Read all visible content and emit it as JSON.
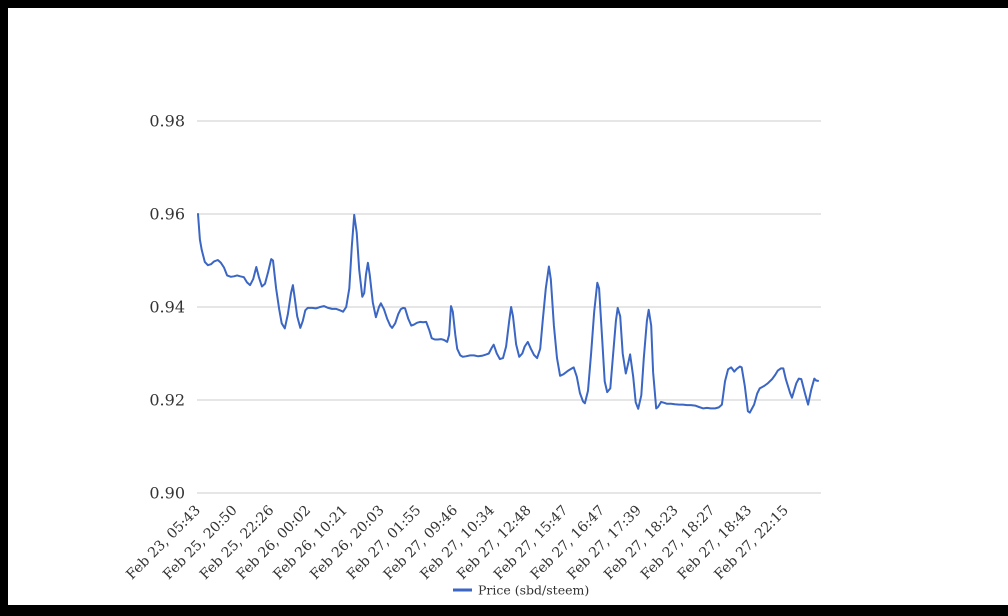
{
  "canvas": {
    "frame_color": "#000000",
    "page_color": "#ffffff"
  },
  "chart_data": {
    "type": "line",
    "title": "",
    "xlabel": "",
    "ylabel": "",
    "grid": true,
    "legend_position": "bottom",
    "colors": {
      "line": "#3b66c4",
      "grid": "#cccccc",
      "axis_text": "#333333"
    },
    "y_axis": {
      "min": 0.9,
      "max": 0.98,
      "tick_labels": [
        "0.90",
        "0.92",
        "0.94",
        "0.96",
        "0.98"
      ],
      "tick_values": [
        0.9,
        0.92,
        0.94,
        0.96,
        0.98
      ]
    },
    "x_axis": {
      "tick_labels": [
        "Feb 23, 05:43",
        "Feb 25, 20:50",
        "Feb 25, 22:26",
        "Feb 26, 00:02",
        "Feb 26, 10:21",
        "Feb 26, 20:03",
        "Feb 27, 01:55",
        "Feb 27, 09:46",
        "Feb 27, 10:34",
        "Feb 27, 12:48",
        "Feb 27, 15:47",
        "Feb 27, 16:47",
        "Feb 27, 17:39",
        "Feb 27, 18:23",
        "Feb 27, 18:27",
        "Feb 27, 18:43",
        "Feb 27, 22:15"
      ]
    },
    "series": [
      {
        "name": "Price (sbd/steem)",
        "points": [
          [
            0,
            0.96
          ],
          [
            0.003,
            0.9545
          ],
          [
            0.006,
            0.9523
          ],
          [
            0.011,
            0.9497
          ],
          [
            0.016,
            0.949
          ],
          [
            0.021,
            0.9492
          ],
          [
            0.026,
            0.9498
          ],
          [
            0.032,
            0.9501
          ],
          [
            0.037,
            0.9495
          ],
          [
            0.042,
            0.9485
          ],
          [
            0.047,
            0.9468
          ],
          [
            0.053,
            0.9465
          ],
          [
            0.058,
            0.9466
          ],
          [
            0.063,
            0.9468
          ],
          [
            0.068,
            0.9466
          ],
          [
            0.074,
            0.9464
          ],
          [
            0.079,
            0.9453
          ],
          [
            0.084,
            0.9447
          ],
          [
            0.089,
            0.946
          ],
          [
            0.094,
            0.9486
          ],
          [
            0.098,
            0.9465
          ],
          [
            0.103,
            0.9444
          ],
          [
            0.108,
            0.945
          ],
          [
            0.113,
            0.9475
          ],
          [
            0.118,
            0.9503
          ],
          [
            0.121,
            0.95
          ],
          [
            0.126,
            0.944
          ],
          [
            0.131,
            0.9395
          ],
          [
            0.135,
            0.9365
          ],
          [
            0.14,
            0.9354
          ],
          [
            0.145,
            0.9385
          ],
          [
            0.15,
            0.943
          ],
          [
            0.153,
            0.9447
          ],
          [
            0.156,
            0.942
          ],
          [
            0.16,
            0.938
          ],
          [
            0.165,
            0.9355
          ],
          [
            0.169,
            0.937
          ],
          [
            0.173,
            0.9393
          ],
          [
            0.177,
            0.9398
          ],
          [
            0.184,
            0.9398
          ],
          [
            0.19,
            0.9397
          ],
          [
            0.197,
            0.94
          ],
          [
            0.203,
            0.9402
          ],
          [
            0.21,
            0.9398
          ],
          [
            0.216,
            0.9396
          ],
          [
            0.223,
            0.9396
          ],
          [
            0.229,
            0.9393
          ],
          [
            0.234,
            0.939
          ],
          [
            0.239,
            0.94
          ],
          [
            0.244,
            0.944
          ],
          [
            0.248,
            0.953
          ],
          [
            0.252,
            0.9598
          ],
          [
            0.256,
            0.956
          ],
          [
            0.26,
            0.948
          ],
          [
            0.265,
            0.9422
          ],
          [
            0.268,
            0.943
          ],
          [
            0.271,
            0.947
          ],
          [
            0.274,
            0.9495
          ],
          [
            0.277,
            0.947
          ],
          [
            0.282,
            0.941
          ],
          [
            0.287,
            0.9378
          ],
          [
            0.292,
            0.94
          ],
          [
            0.295,
            0.9408
          ],
          [
            0.3,
            0.9395
          ],
          [
            0.305,
            0.9375
          ],
          [
            0.31,
            0.936
          ],
          [
            0.313,
            0.9355
          ],
          [
            0.318,
            0.9365
          ],
          [
            0.323,
            0.9385
          ],
          [
            0.327,
            0.9395
          ],
          [
            0.331,
            0.9398
          ],
          [
            0.334,
            0.9397
          ],
          [
            0.339,
            0.9375
          ],
          [
            0.344,
            0.936
          ],
          [
            0.348,
            0.9362
          ],
          [
            0.353,
            0.9366
          ],
          [
            0.358,
            0.9368
          ],
          [
            0.363,
            0.9367
          ],
          [
            0.368,
            0.9368
          ],
          [
            0.373,
            0.935
          ],
          [
            0.377,
            0.9333
          ],
          [
            0.382,
            0.933
          ],
          [
            0.387,
            0.933
          ],
          [
            0.392,
            0.9331
          ],
          [
            0.397,
            0.9329
          ],
          [
            0.402,
            0.9325
          ],
          [
            0.405,
            0.934
          ],
          [
            0.408,
            0.9402
          ],
          [
            0.411,
            0.939
          ],
          [
            0.415,
            0.934
          ],
          [
            0.418,
            0.931
          ],
          [
            0.423,
            0.9296
          ],
          [
            0.427,
            0.9293
          ],
          [
            0.432,
            0.9294
          ],
          [
            0.439,
            0.9296
          ],
          [
            0.445,
            0.9296
          ],
          [
            0.452,
            0.9294
          ],
          [
            0.458,
            0.9295
          ],
          [
            0.465,
            0.9298
          ],
          [
            0.469,
            0.93
          ],
          [
            0.474,
            0.9313
          ],
          [
            0.477,
            0.9319
          ],
          [
            0.482,
            0.93
          ],
          [
            0.487,
            0.9288
          ],
          [
            0.492,
            0.929
          ],
          [
            0.497,
            0.9315
          ],
          [
            0.502,
            0.937
          ],
          [
            0.505,
            0.94
          ],
          [
            0.508,
            0.938
          ],
          [
            0.513,
            0.932
          ],
          [
            0.518,
            0.9293
          ],
          [
            0.523,
            0.93
          ],
          [
            0.527,
            0.9315
          ],
          [
            0.532,
            0.9325
          ],
          [
            0.537,
            0.931
          ],
          [
            0.542,
            0.9297
          ],
          [
            0.547,
            0.929
          ],
          [
            0.552,
            0.931
          ],
          [
            0.556,
            0.937
          ],
          [
            0.561,
            0.944
          ],
          [
            0.566,
            0.9487
          ],
          [
            0.569,
            0.946
          ],
          [
            0.574,
            0.936
          ],
          [
            0.579,
            0.929
          ],
          [
            0.584,
            0.9252
          ],
          [
            0.589,
            0.9255
          ],
          [
            0.594,
            0.926
          ],
          [
            0.598,
            0.9264
          ],
          [
            0.603,
            0.9268
          ],
          [
            0.606,
            0.927
          ],
          [
            0.611,
            0.925
          ],
          [
            0.616,
            0.9215
          ],
          [
            0.621,
            0.9197
          ],
          [
            0.624,
            0.9193
          ],
          [
            0.629,
            0.922
          ],
          [
            0.634,
            0.93
          ],
          [
            0.639,
            0.939
          ],
          [
            0.644,
            0.9452
          ],
          [
            0.647,
            0.944
          ],
          [
            0.652,
            0.933
          ],
          [
            0.656,
            0.924
          ],
          [
            0.66,
            0.9217
          ],
          [
            0.665,
            0.9225
          ],
          [
            0.669,
            0.929
          ],
          [
            0.674,
            0.937
          ],
          [
            0.677,
            0.9398
          ],
          [
            0.681,
            0.938
          ],
          [
            0.685,
            0.93
          ],
          [
            0.69,
            0.9257
          ],
          [
            0.694,
            0.928
          ],
          [
            0.697,
            0.9298
          ],
          [
            0.702,
            0.925
          ],
          [
            0.706,
            0.9195
          ],
          [
            0.71,
            0.9181
          ],
          [
            0.715,
            0.921
          ],
          [
            0.719,
            0.929
          ],
          [
            0.724,
            0.937
          ],
          [
            0.727,
            0.9394
          ],
          [
            0.731,
            0.936
          ],
          [
            0.734,
            0.926
          ],
          [
            0.739,
            0.9182
          ],
          [
            0.742,
            0.9185
          ],
          [
            0.747,
            0.9196
          ],
          [
            0.752,
            0.9194
          ],
          [
            0.756,
            0.9192
          ],
          [
            0.763,
            0.9192
          ],
          [
            0.769,
            0.9191
          ],
          [
            0.776,
            0.919
          ],
          [
            0.782,
            0.919
          ],
          [
            0.789,
            0.9189
          ],
          [
            0.795,
            0.9189
          ],
          [
            0.802,
            0.9188
          ],
          [
            0.808,
            0.9185
          ],
          [
            0.815,
            0.9182
          ],
          [
            0.821,
            0.9183
          ],
          [
            0.827,
            0.9182
          ],
          [
            0.834,
            0.9182
          ],
          [
            0.84,
            0.9184
          ],
          [
            0.845,
            0.919
          ],
          [
            0.85,
            0.924
          ],
          [
            0.855,
            0.9266
          ],
          [
            0.86,
            0.927
          ],
          [
            0.865,
            0.9261
          ],
          [
            0.869,
            0.9267
          ],
          [
            0.874,
            0.9272
          ],
          [
            0.877,
            0.927
          ],
          [
            0.882,
            0.923
          ],
          [
            0.887,
            0.9176
          ],
          [
            0.89,
            0.9173
          ],
          [
            0.897,
            0.919
          ],
          [
            0.902,
            0.9214
          ],
          [
            0.906,
            0.9225
          ],
          [
            0.913,
            0.923
          ],
          [
            0.919,
            0.9236
          ],
          [
            0.926,
            0.9245
          ],
          [
            0.931,
            0.9254
          ],
          [
            0.935,
            0.9263
          ],
          [
            0.94,
            0.9268
          ],
          [
            0.944,
            0.9268
          ],
          [
            0.948,
            0.9245
          ],
          [
            0.955,
            0.9215
          ],
          [
            0.958,
            0.9205
          ],
          [
            0.965,
            0.9236
          ],
          [
            0.969,
            0.9246
          ],
          [
            0.973,
            0.9245
          ],
          [
            0.979,
            0.9214
          ],
          [
            0.984,
            0.919
          ],
          [
            0.989,
            0.9222
          ],
          [
            0.994,
            0.9246
          ],
          [
            0.997,
            0.9242
          ],
          [
            1,
            0.9241
          ]
        ]
      }
    ]
  }
}
